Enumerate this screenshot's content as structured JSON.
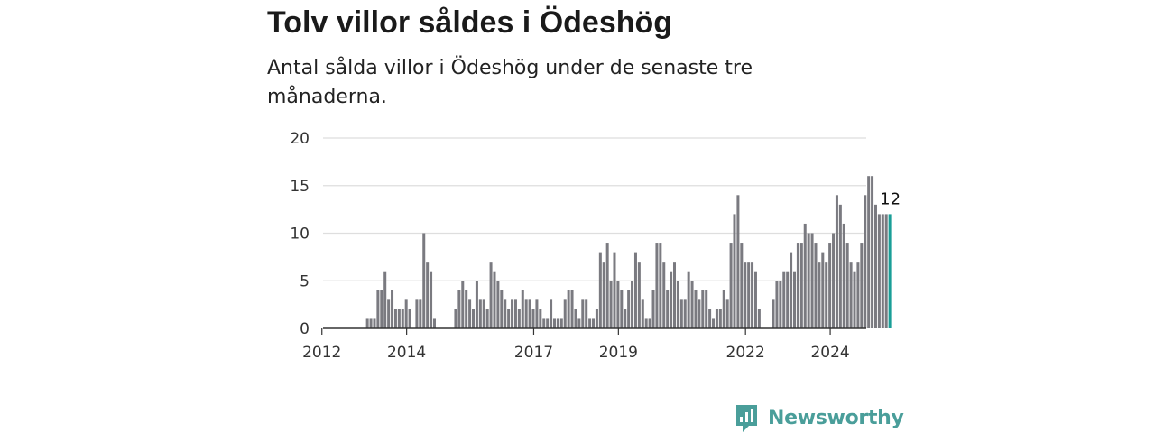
{
  "header": {
    "title": "Tolv villor såldes i Ödeshög",
    "subtitle": "Antal sålda villor i Ödeshög under de senaste tre månaderna."
  },
  "logo": {
    "text": "Newsworthy",
    "icon": "newsworthy-logo-icon",
    "color": "#4a9e9a"
  },
  "chart_data": {
    "type": "bar",
    "title": "Tolv villor såldes i Ödeshög",
    "subtitle": "Antal sålda villor i Ödeshög under de senaste tre månaderna.",
    "x_start": "2012-02",
    "x_ticks": [
      "2012",
      "2014",
      "2017",
      "2019",
      "2022",
      "2024"
    ],
    "y_ticks": [
      0,
      5,
      10,
      15,
      20
    ],
    "ylim": [
      0,
      20
    ],
    "grid": true,
    "bar_color": "#7a7a80",
    "highlight_color": "#1a9e97",
    "last_value_label": "12",
    "values": [
      0,
      0,
      0,
      0,
      0,
      0,
      0,
      0,
      0,
      0,
      0,
      0,
      1,
      1,
      1,
      4,
      4,
      6,
      3,
      4,
      2,
      2,
      2,
      3,
      2,
      0,
      3,
      3,
      10,
      7,
      6,
      1,
      0,
      0,
      0,
      0,
      0,
      2,
      4,
      5,
      4,
      3,
      2,
      5,
      3,
      3,
      2,
      7,
      6,
      5,
      4,
      3,
      2,
      3,
      3,
      2,
      4,
      3,
      3,
      2,
      3,
      2,
      1,
      1,
      3,
      1,
      1,
      1,
      3,
      4,
      4,
      2,
      1,
      3,
      3,
      1,
      1,
      2,
      8,
      7,
      9,
      5,
      8,
      5,
      4,
      2,
      4,
      5,
      8,
      7,
      3,
      1,
      1,
      4,
      9,
      9,
      7,
      4,
      6,
      7,
      5,
      3,
      3,
      6,
      5,
      4,
      3,
      4,
      4,
      2,
      1,
      2,
      2,
      4,
      3,
      9,
      12,
      14,
      9,
      7,
      7,
      7,
      6,
      2,
      0,
      0,
      0,
      3,
      5,
      5,
      6,
      6,
      8,
      6,
      9,
      9,
      11,
      10,
      10,
      9,
      7,
      8,
      7,
      9,
      10,
      14,
      13,
      11,
      9,
      7,
      6,
      7,
      9,
      14,
      16,
      16,
      13,
      12,
      12,
      12,
      12
    ]
  }
}
